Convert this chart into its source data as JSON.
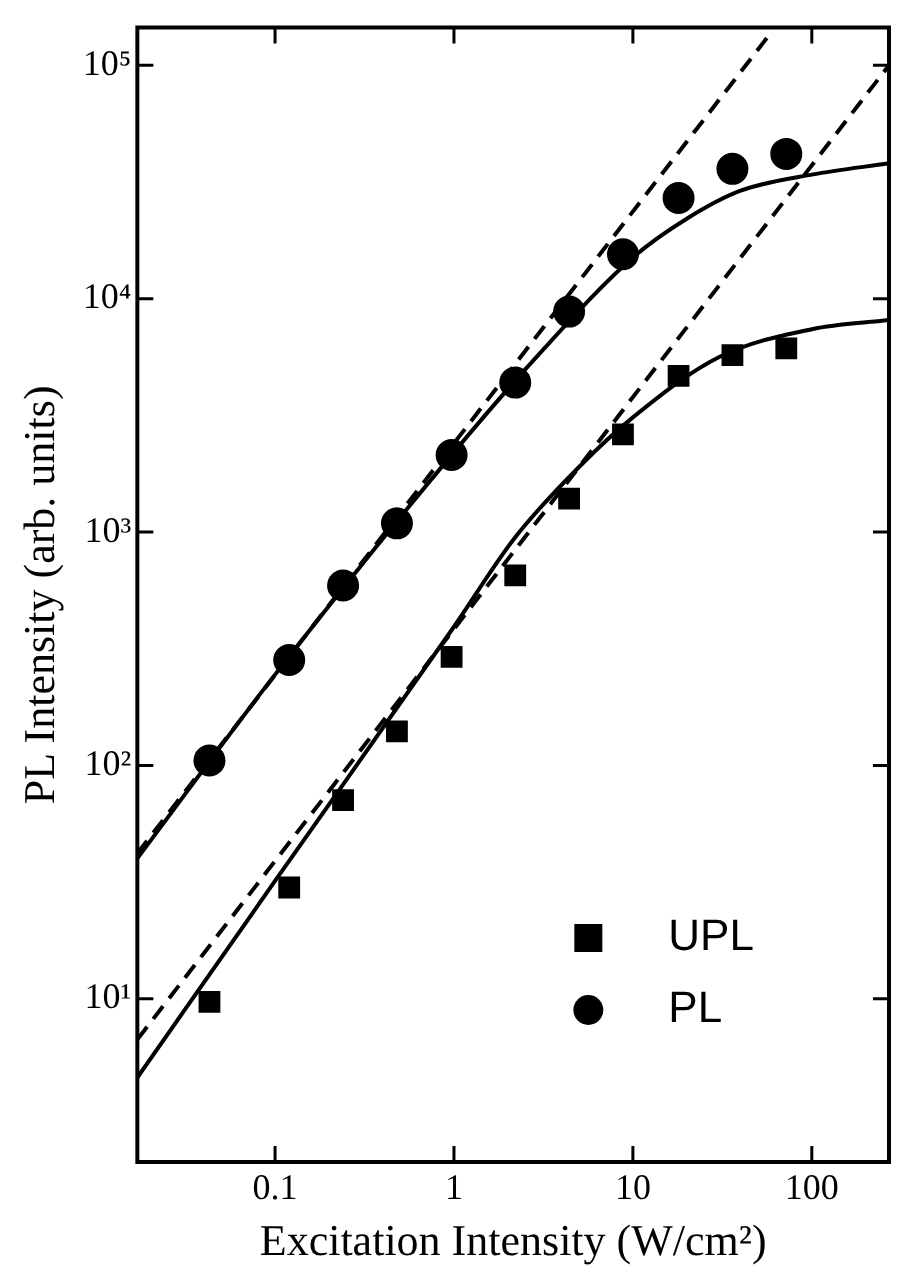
{
  "chart_data": {
    "type": "scatter",
    "xlabel": "Excitation Intensity (W/cm²)",
    "ylabel": "PL Intensity (arb. units)",
    "log": "xy",
    "xlim": [
      0.017,
      270
    ],
    "xticks": [
      0.1,
      1,
      10,
      100
    ],
    "ylim": [
      2,
      145000
    ],
    "yticks": [
      {
        "value": 10,
        "label": "10¹"
      },
      {
        "value": 100,
        "label": "10²"
      },
      {
        "value": 1000,
        "label": "10³"
      },
      {
        "value": 10000,
        "label": "10⁴"
      },
      {
        "value": 100000,
        "label": "10⁵"
      }
    ],
    "grid": false,
    "legend": "bottom right",
    "x": [
      0.043,
      0.12,
      0.24,
      0.48,
      0.97,
      2.2,
      4.4,
      8.8,
      18,
      36,
      72
    ],
    "series": [
      {
        "name": "UPL",
        "marker": "square",
        "color": "#000000",
        "values": [
          9.7,
          30,
          71,
          140,
          292,
          652,
          1390,
          2620,
          4670,
          5730,
          6120
        ]
      },
      {
        "name": "PL",
        "marker": "circle",
        "color": "#000000",
        "values": [
          105,
          283,
          590,
          1090,
          2140,
          4370,
          8800,
          15500,
          27000,
          36000,
          41700
        ]
      },
      {
        "type": "line",
        "line_style": "solid",
        "marker": "none",
        "color": "#000000",
        "x": [
          0.017,
          0.1,
          1,
          3,
          10,
          20,
          40,
          100,
          270
        ],
        "values": [
          40,
          245,
          2200,
          5800,
          15000,
          22000,
          29000,
          34000,
          38000
        ]
      },
      {
        "type": "line",
        "line_style": "dashed",
        "marker": "none",
        "color": "#000000",
        "x": [
          0.017,
          60
        ],
        "values": [
          42,
          140000
        ]
      },
      {
        "type": "line",
        "line_style": "solid",
        "marker": "none",
        "color": "#000000",
        "x": [
          0.017,
          0.1,
          1,
          2.2,
          5,
          10,
          30,
          100,
          270
        ],
        "values": [
          4.6,
          32,
          393,
          950,
          1900,
          3100,
          5600,
          7400,
          8100
        ]
      },
      {
        "type": "line",
        "line_style": "dashed",
        "marker": "none",
        "color": "#000000",
        "x": [
          0.017,
          270
        ],
        "values": [
          6.7,
          100000
        ]
      }
    ]
  }
}
